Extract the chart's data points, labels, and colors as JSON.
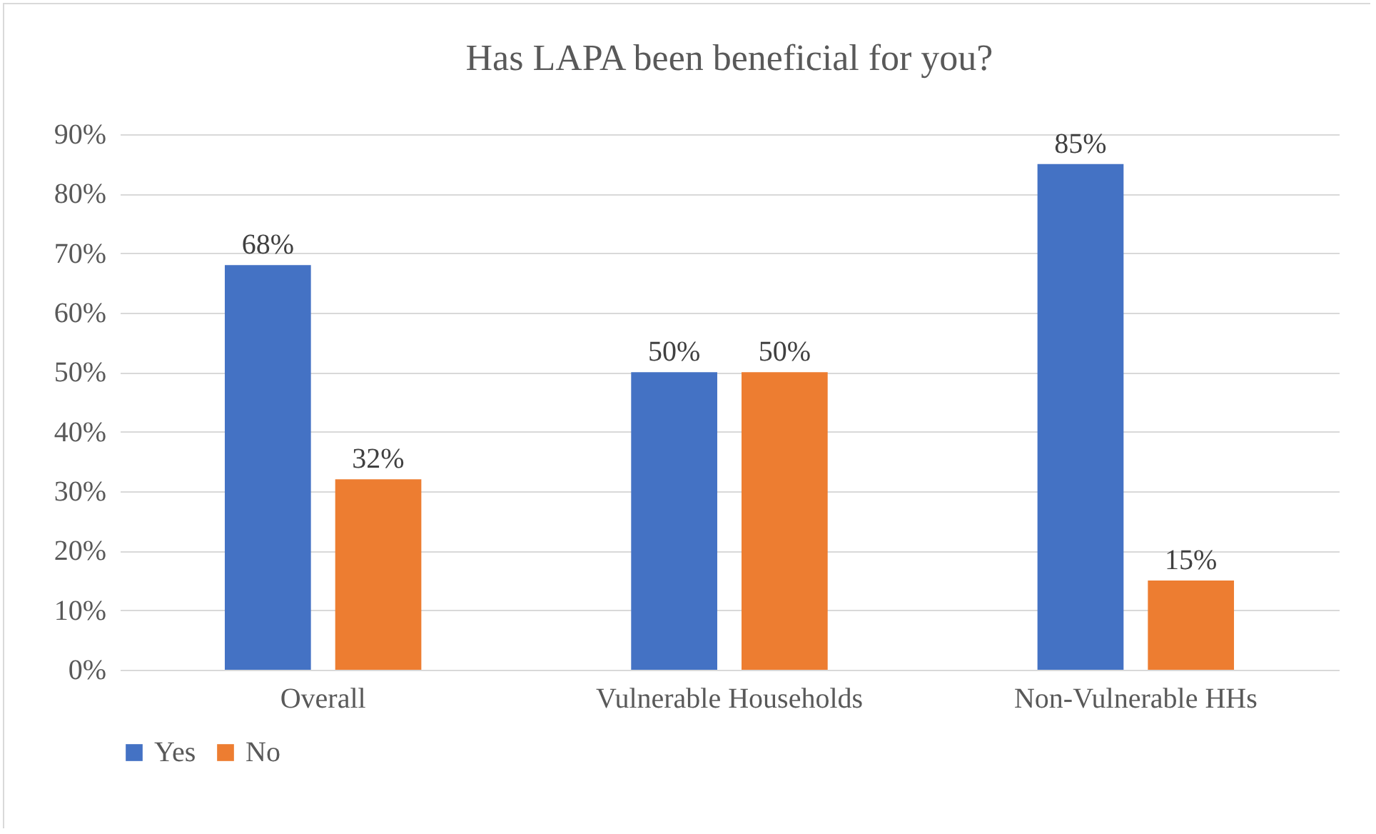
{
  "chart_data": {
    "type": "bar",
    "title": "Has LAPA been beneficial for you?",
    "categories": [
      "Overall",
      "Vulnerable Households",
      "Non-Vulnerable HHs"
    ],
    "series": [
      {
        "name": "Yes",
        "color": "#4472c4",
        "values": [
          68,
          50,
          85
        ],
        "value_labels": [
          "68%",
          "50%",
          "85%"
        ]
      },
      {
        "name": "No",
        "color": "#ed7d31",
        "values": [
          32,
          50,
          15
        ],
        "value_labels": [
          "32%",
          "50%",
          "15%"
        ]
      }
    ],
    "ylim": [
      0,
      90
    ],
    "yticks": [
      {
        "value": 0,
        "label": "0%"
      },
      {
        "value": 10,
        "label": "10%"
      },
      {
        "value": 20,
        "label": "20%"
      },
      {
        "value": 30,
        "label": "30%"
      },
      {
        "value": 40,
        "label": "40%"
      },
      {
        "value": 50,
        "label": "50%"
      },
      {
        "value": 60,
        "label": "60%"
      },
      {
        "value": 70,
        "label": "70%"
      },
      {
        "value": 80,
        "label": "80%"
      },
      {
        "value": 90,
        "label": "90%"
      }
    ],
    "grid": "y",
    "legend": "bottom"
  }
}
